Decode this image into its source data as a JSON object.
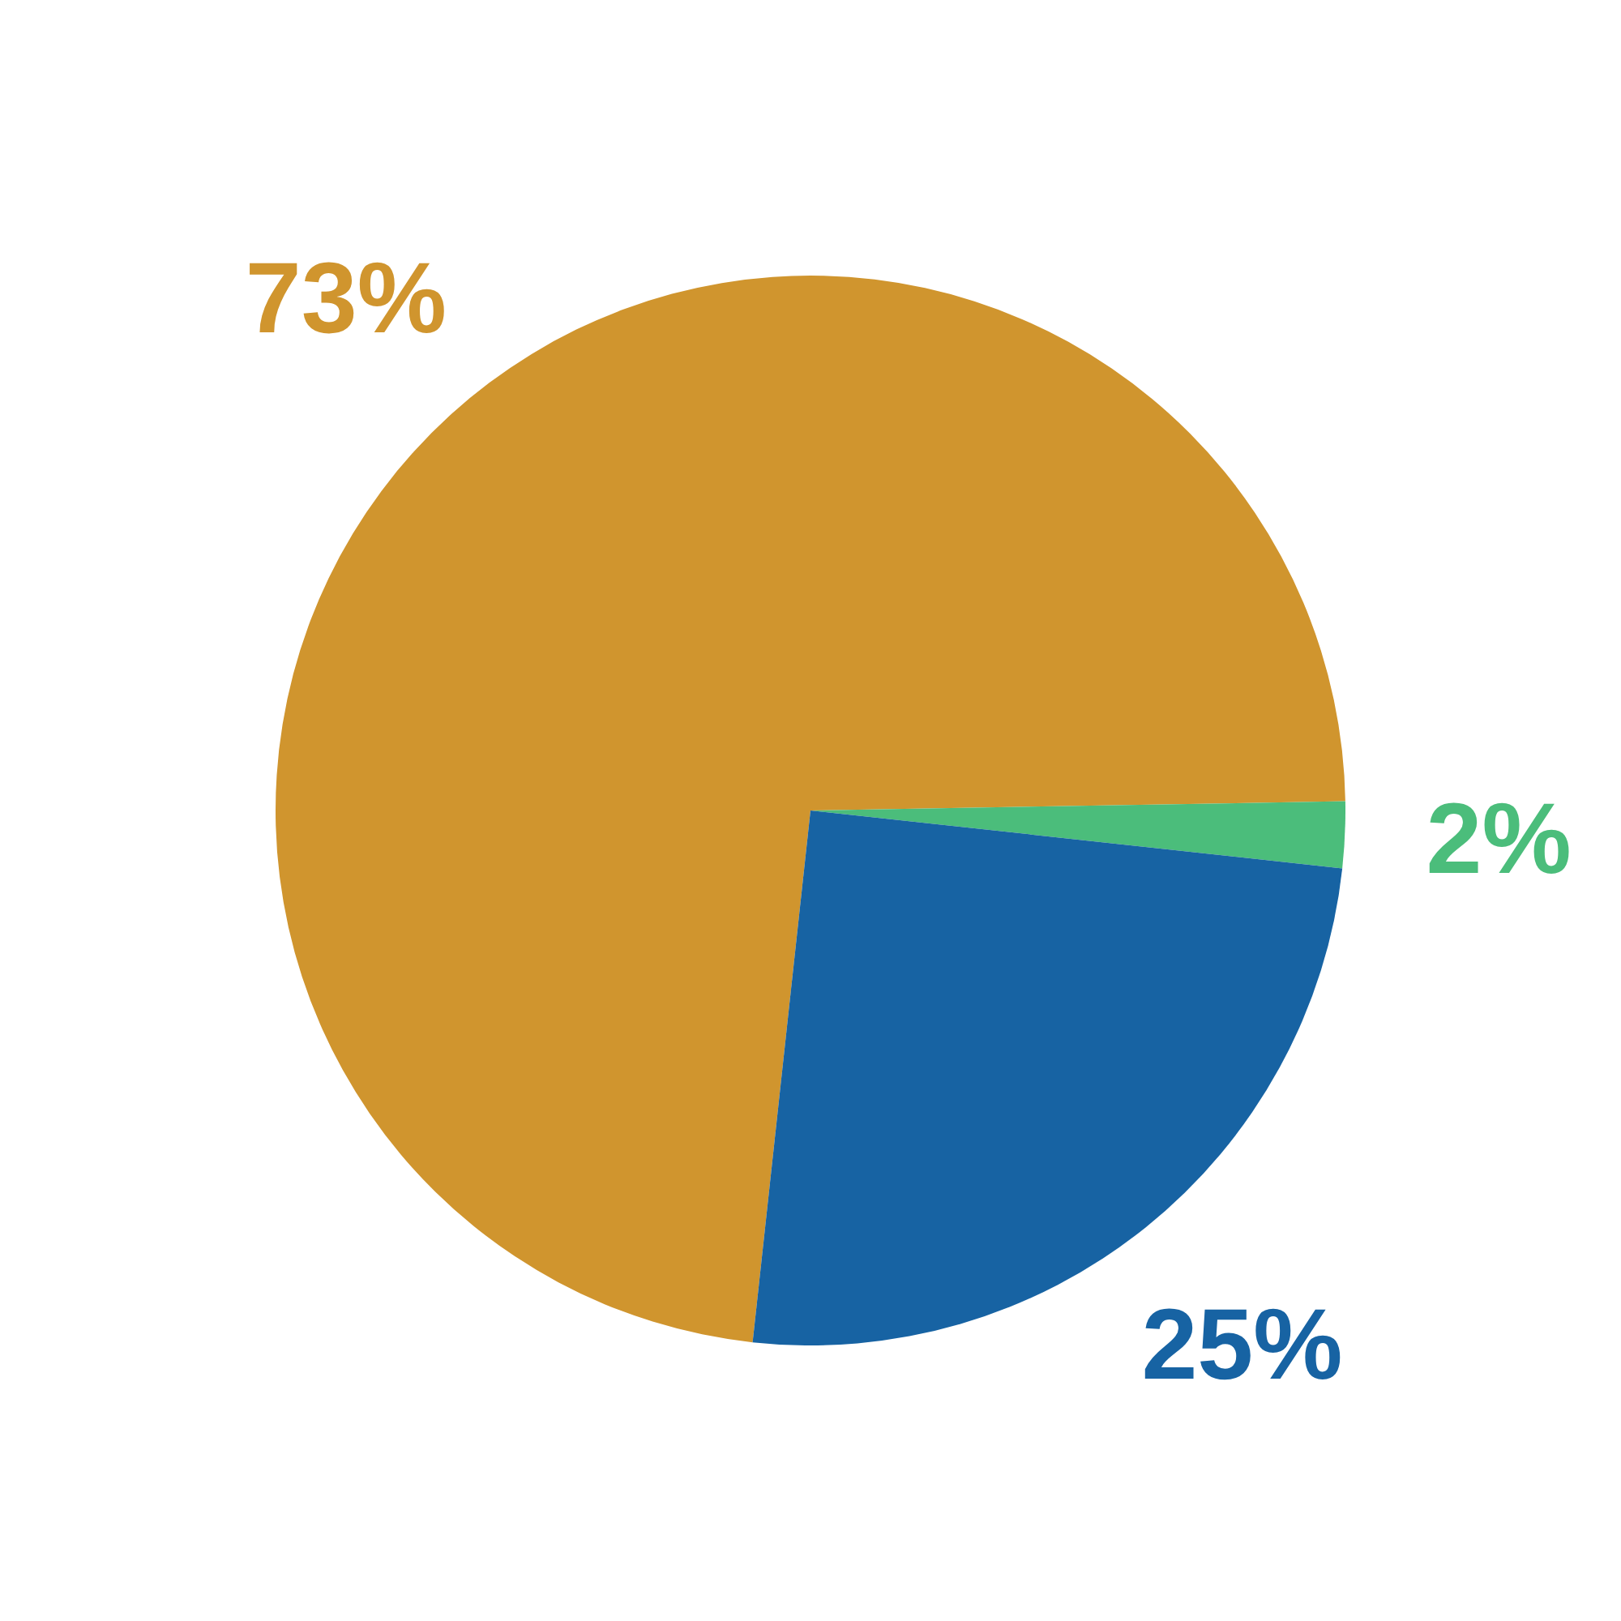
{
  "chart_data": {
    "type": "pie",
    "categories": [
      null,
      null,
      null
    ],
    "values": [
      73,
      2,
      25
    ],
    "colors": [
      "#d0952e",
      "#4bbd7b",
      "#1763a3"
    ],
    "value_labels": [
      "73%",
      "2%",
      "25%"
    ]
  }
}
